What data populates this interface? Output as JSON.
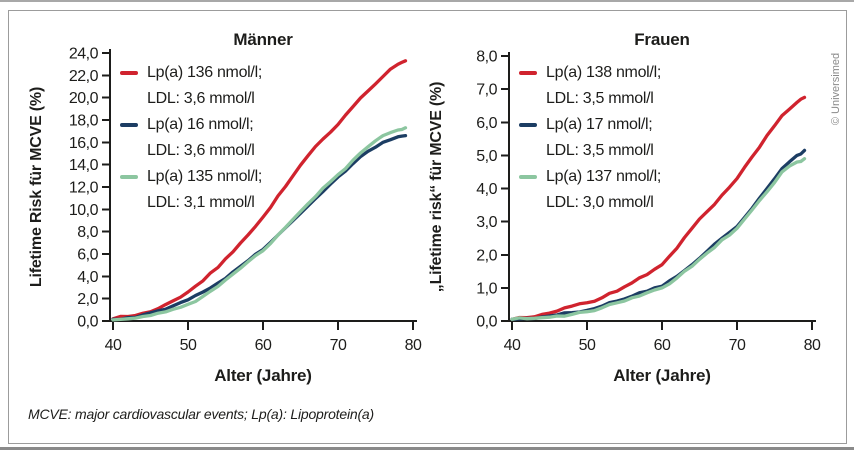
{
  "figure": {
    "footnote": "MCVE: major cardiovascular events; Lp(a): Lipoprotein(a)",
    "credit": "© Universimed"
  },
  "colors": {
    "axis": "#1d1d1b",
    "text": "#1d1d1b",
    "muted_gray": "#8a8a8a"
  },
  "chart_data": [
    {
      "type": "line",
      "title": "Männer",
      "xlabel": "Alter (Jahre)",
      "ylabel": "Lifetime Risk für MCVE (%)",
      "xlim": [
        40,
        80
      ],
      "ylim": [
        0,
        24
      ],
      "grid": false,
      "legend_position": "top-left",
      "x_ticks": [
        40,
        50,
        60,
        70,
        80
      ],
      "x_tick_labels": [
        "40",
        "50",
        "60",
        "70",
        "80"
      ],
      "y_tick_step": 2,
      "y_tick_labels": [
        "0,0",
        "2,0",
        "4,0",
        "6,0",
        "8,0",
        "10,0",
        "12,0",
        "14,0",
        "16,0",
        "18,0",
        "20,0",
        "22,0",
        "24,0"
      ],
      "x": [
        40,
        42,
        44,
        46,
        48,
        50,
        52,
        54,
        56,
        58,
        60,
        62,
        64,
        66,
        68,
        70,
        72,
        74,
        76,
        78,
        79
      ],
      "series": [
        {
          "name": "Lp(a) 136 nmol/l; LDL: 3,6 mmol/l",
          "legend_line1": "Lp(a) 136 nmol/l;",
          "legend_line2": "LDL: 3,6 mmol/l",
          "color": "#d0232e",
          "values": [
            0.2,
            0.4,
            0.7,
            1.1,
            1.8,
            2.6,
            3.6,
            4.8,
            6.2,
            7.7,
            9.3,
            11.2,
            13.0,
            14.8,
            16.3,
            17.6,
            19.2,
            20.6,
            21.9,
            23.0,
            23.3
          ]
        },
        {
          "name": "Lp(a) 16 nmol/l; LDL: 3,6 mmol/l",
          "legend_line1": "Lp(a) 16 nmol/l;",
          "legend_line2": "LDL: 3,6 mmol/l",
          "color": "#1c3d63",
          "values": [
            0.15,
            0.3,
            0.55,
            0.9,
            1.35,
            1.9,
            2.6,
            3.4,
            4.4,
            5.4,
            6.4,
            7.7,
            9.0,
            10.3,
            11.6,
            12.9,
            14.1,
            15.2,
            16.0,
            16.5,
            16.6
          ]
        },
        {
          "name": "Lp(a) 135 nmol/l; LDL: 3,1 mmol/l",
          "legend_line1": "Lp(a) 135 nmol/l;",
          "legend_line2": "LDL: 3,1 mmol/l",
          "color": "#8cc6a0",
          "values": [
            0.1,
            0.2,
            0.4,
            0.7,
            1.05,
            1.5,
            2.2,
            3.1,
            4.2,
            5.3,
            6.3,
            7.7,
            9.1,
            10.5,
            11.9,
            13.1,
            14.4,
            15.6,
            16.6,
            17.1,
            17.3
          ]
        }
      ]
    },
    {
      "type": "line",
      "title": "Frauen",
      "xlabel": "Alter (Jahre)",
      "ylabel": "„Lifetime risk“ für MCVE (%)",
      "xlim": [
        40,
        80
      ],
      "ylim": [
        0,
        8
      ],
      "grid": false,
      "legend_position": "top-left",
      "x_ticks": [
        40,
        50,
        60,
        70,
        80
      ],
      "x_tick_labels": [
        "40",
        "50",
        "60",
        "70",
        "80"
      ],
      "y_tick_step": 1,
      "y_tick_labels": [
        "0,0",
        "1,0",
        "2,0",
        "3,0",
        "4,0",
        "5,0",
        "6,0",
        "7,0",
        "8,0"
      ],
      "x": [
        40,
        42,
        44,
        46,
        48,
        50,
        52,
        54,
        56,
        58,
        60,
        62,
        64,
        66,
        68,
        70,
        72,
        74,
        76,
        78,
        79
      ],
      "series": [
        {
          "name": "Lp(a) 138 nmol/l; LDL: 3,5 mmol/l",
          "legend_line1": "Lp(a) 138 nmol/l;",
          "legend_line2": "LDL: 3,5 mmol/l",
          "color": "#d0232e",
          "values": [
            0.05,
            0.1,
            0.2,
            0.3,
            0.45,
            0.55,
            0.7,
            0.9,
            1.15,
            1.4,
            1.7,
            2.2,
            2.8,
            3.3,
            3.8,
            4.3,
            4.95,
            5.6,
            6.2,
            6.6,
            6.75
          ]
        },
        {
          "name": "Lp(a) 17 nmol/l; LDL: 3,5 mmol/l",
          "legend_line1": "Lp(a) 17 nmol/l;",
          "legend_line2": "LDL: 3,5 mmol/l",
          "color": "#1c3d63",
          "values": [
            0.05,
            0.08,
            0.12,
            0.18,
            0.25,
            0.32,
            0.45,
            0.6,
            0.75,
            0.9,
            1.05,
            1.35,
            1.7,
            2.1,
            2.5,
            2.85,
            3.4,
            4.0,
            4.6,
            5.0,
            5.15
          ]
        },
        {
          "name": "Lp(a) 137 nmol/l; LDL: 3,0 mmol/l",
          "legend_line1": "Lp(a) 137 nmol/l;",
          "legend_line2": "LDL: 3,0 mmol/l",
          "color": "#8cc6a0",
          "values": [
            0.05,
            0.07,
            0.1,
            0.15,
            0.2,
            0.28,
            0.4,
            0.55,
            0.7,
            0.85,
            1.0,
            1.3,
            1.65,
            2.05,
            2.45,
            2.8,
            3.35,
            3.9,
            4.5,
            4.8,
            4.9
          ]
        }
      ]
    }
  ]
}
